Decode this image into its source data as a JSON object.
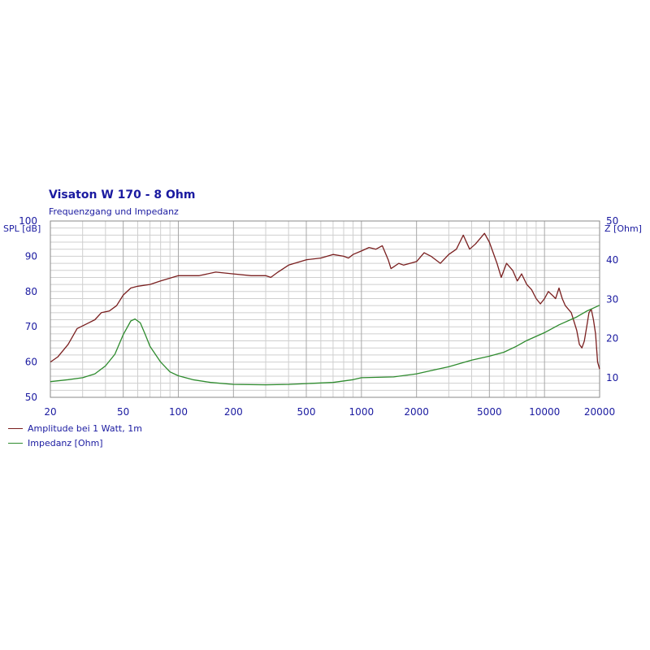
{
  "chart_data": {
    "type": "line",
    "title": "Visaton W 170 - 8 Ohm",
    "subtitle": "Frequenzgang und Impedanz",
    "ylabel_left": "SPL [dB]",
    "ylabel_right": "Z [Ohm]",
    "x_scale": "log",
    "xlim": [
      20,
      20000
    ],
    "ylim_left": [
      50,
      100
    ],
    "ylim_right": [
      5,
      50
    ],
    "x_ticks": [
      20,
      50,
      100,
      200,
      500,
      1000,
      2000,
      5000,
      10000,
      20000
    ],
    "x_tick_labels": [
      "20",
      "50",
      "100",
      "200",
      "500",
      "1000",
      "2000",
      "5000",
      "10000",
      "20000"
    ],
    "y_ticks_left": [
      50,
      60,
      70,
      80,
      90,
      100
    ],
    "y_ticks_right": [
      10,
      20,
      30,
      40,
      50
    ],
    "grid": true,
    "legend": "bottom-left",
    "series": [
      {
        "name": "Amplitude bei 1 Watt, 1m",
        "axis": "left",
        "color": "#7a1f1f",
        "points": [
          [
            20,
            60
          ],
          [
            22,
            61.5
          ],
          [
            25,
            65
          ],
          [
            28,
            69.5
          ],
          [
            32,
            71
          ],
          [
            35,
            72
          ],
          [
            38,
            74
          ],
          [
            42,
            74.5
          ],
          [
            46,
            76
          ],
          [
            50,
            79
          ],
          [
            55,
            81
          ],
          [
            60,
            81.5
          ],
          [
            70,
            82
          ],
          [
            80,
            83
          ],
          [
            100,
            84.5
          ],
          [
            130,
            84.5
          ],
          [
            160,
            85.5
          ],
          [
            200,
            85
          ],
          [
            250,
            84.5
          ],
          [
            300,
            84.5
          ],
          [
            320,
            84
          ],
          [
            350,
            85.5
          ],
          [
            400,
            87.5
          ],
          [
            500,
            89
          ],
          [
            600,
            89.5
          ],
          [
            700,
            90.5
          ],
          [
            800,
            90
          ],
          [
            850,
            89.5
          ],
          [
            900,
            90.5
          ],
          [
            1000,
            91.5
          ],
          [
            1100,
            92.5
          ],
          [
            1200,
            92
          ],
          [
            1300,
            93
          ],
          [
            1400,
            89
          ],
          [
            1450,
            86.5
          ],
          [
            1500,
            87
          ],
          [
            1600,
            88
          ],
          [
            1700,
            87.5
          ],
          [
            2000,
            88.5
          ],
          [
            2200,
            91
          ],
          [
            2400,
            90
          ],
          [
            2700,
            88
          ],
          [
            3000,
            90.5
          ],
          [
            3300,
            92
          ],
          [
            3600,
            96
          ],
          [
            3900,
            92
          ],
          [
            4200,
            93.5
          ],
          [
            4700,
            96.5
          ],
          [
            5000,
            94
          ],
          [
            5500,
            88
          ],
          [
            5800,
            84
          ],
          [
            6200,
            88
          ],
          [
            6700,
            86
          ],
          [
            7100,
            83
          ],
          [
            7500,
            85
          ],
          [
            8000,
            82
          ],
          [
            8500,
            80.5
          ],
          [
            9000,
            78
          ],
          [
            9500,
            76.5
          ],
          [
            10000,
            78
          ],
          [
            10500,
            80
          ],
          [
            11000,
            79
          ],
          [
            11500,
            78
          ],
          [
            12000,
            81
          ],
          [
            12500,
            78
          ],
          [
            13000,
            76
          ],
          [
            14000,
            74
          ],
          [
            15000,
            69
          ],
          [
            15500,
            65
          ],
          [
            16000,
            64
          ],
          [
            16500,
            66
          ],
          [
            17000,
            70
          ],
          [
            17500,
            74
          ],
          [
            18000,
            75
          ],
          [
            18500,
            72
          ],
          [
            19000,
            68
          ],
          [
            19500,
            60
          ],
          [
            20000,
            58
          ]
        ]
      },
      {
        "name": "Impedanz [Ohm]",
        "axis": "right",
        "color": "#2e8b2e",
        "points": [
          [
            20,
            9
          ],
          [
            25,
            9.5
          ],
          [
            30,
            10
          ],
          [
            35,
            11
          ],
          [
            40,
            13
          ],
          [
            45,
            16
          ],
          [
            50,
            21
          ],
          [
            55,
            24.5
          ],
          [
            58,
            25
          ],
          [
            62,
            24
          ],
          [
            66,
            21
          ],
          [
            70,
            18
          ],
          [
            80,
            14
          ],
          [
            90,
            11.5
          ],
          [
            100,
            10.5
          ],
          [
            120,
            9.5
          ],
          [
            150,
            8.8
          ],
          [
            200,
            8.3
          ],
          [
            300,
            8.2
          ],
          [
            400,
            8.3
          ],
          [
            500,
            8.5
          ],
          [
            700,
            8.8
          ],
          [
            900,
            9.5
          ],
          [
            1000,
            10
          ],
          [
            1500,
            10.2
          ],
          [
            2000,
            11
          ],
          [
            2500,
            12
          ],
          [
            3000,
            12.8
          ],
          [
            4000,
            14.5
          ],
          [
            5000,
            15.5
          ],
          [
            6000,
            16.5
          ],
          [
            7000,
            18
          ],
          [
            8000,
            19.5
          ],
          [
            10000,
            21.5
          ],
          [
            12000,
            23.5
          ],
          [
            15000,
            25.5
          ],
          [
            17000,
            27
          ],
          [
            20000,
            28.5
          ]
        ]
      }
    ]
  }
}
